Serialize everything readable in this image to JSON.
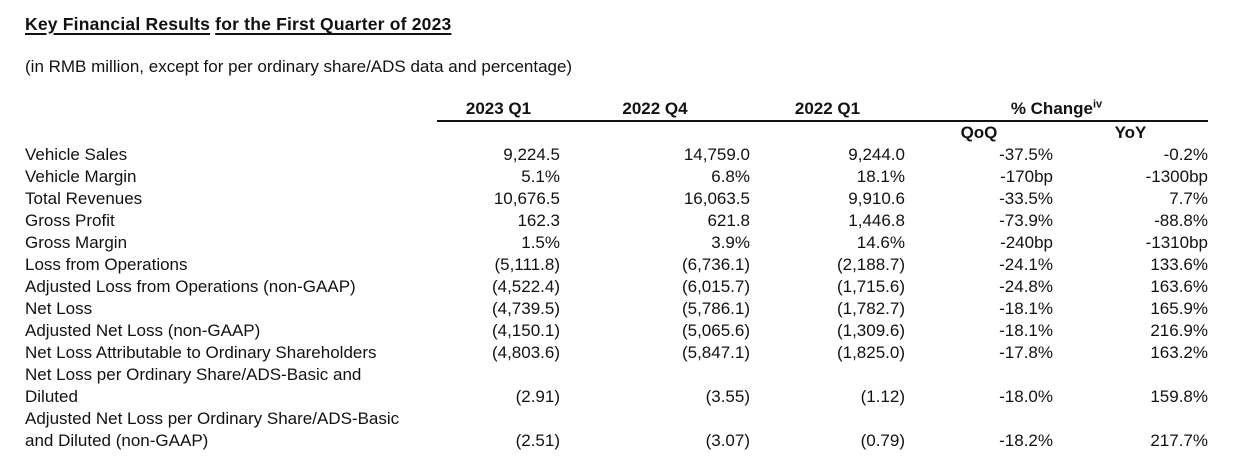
{
  "page": {
    "title_part1": "Key Financial Results",
    "title_part2": "for the First Quarter of 2023",
    "subtitle": "(in RMB million, except for per ordinary share/ADS data and percentage)"
  },
  "colors": {
    "text": "#121212",
    "background": "#ffffff",
    "rule": "#121212"
  },
  "table": {
    "period_headers": [
      "2023 Q1",
      "2022 Q4",
      "2022 Q1"
    ],
    "change_header": {
      "label": "% Change",
      "superscript": "iv"
    },
    "subheaders": {
      "qoq": "QoQ",
      "yoy": "YoY"
    },
    "rows": [
      {
        "label": "Vehicle Sales",
        "values": [
          "9,224.5",
          "14,759.0",
          "9,244.0",
          "-37.5%",
          "-0.2%"
        ]
      },
      {
        "label": "Vehicle Margin",
        "values": [
          "5.1%",
          "6.8%",
          "18.1%",
          "-170bp",
          "-1300bp"
        ]
      },
      {
        "label": "Total Revenues",
        "values": [
          "10,676.5",
          "16,063.5",
          "9,910.6",
          "-33.5%",
          "7.7%"
        ]
      },
      {
        "label": "Gross Profit",
        "values": [
          "162.3",
          "621.8",
          "1,446.8",
          "-73.9%",
          "-88.8%"
        ]
      },
      {
        "label": "Gross Margin",
        "values": [
          "1.5%",
          "3.9%",
          "14.6%",
          "-240bp",
          "-1310bp"
        ]
      },
      {
        "label": "Loss from Operations",
        "values": [
          "(5,111.8)",
          "(6,736.1)",
          "(2,188.7)",
          "-24.1%",
          "133.6%"
        ]
      },
      {
        "label": "Adjusted Loss from Operations (non-GAAP)",
        "values": [
          "(4,522.4)",
          "(6,015.7)",
          "(1,715.6)",
          "-24.8%",
          "163.6%"
        ]
      },
      {
        "label": "Net Loss",
        "values": [
          "(4,739.5)",
          "(5,786.1)",
          "(1,782.7)",
          "-18.1%",
          "165.9%"
        ]
      },
      {
        "label": "Adjusted Net Loss (non-GAAP)",
        "values": [
          "(4,150.1)",
          "(5,065.6)",
          "(1,309.6)",
          "-18.1%",
          "216.9%"
        ]
      },
      {
        "label": "Net Loss Attributable to Ordinary Shareholders",
        "values": [
          "(4,803.6)",
          "(5,847.1)",
          "(1,825.0)",
          "-17.8%",
          "163.2%"
        ]
      },
      {
        "label": "Net Loss per Ordinary Share/ADS-Basic and\nDiluted",
        "values": [
          "(2.91)",
          "(3.55)",
          "(1.12)",
          "-18.0%",
          "159.8%"
        ]
      },
      {
        "label": "Adjusted Net Loss per Ordinary Share/ADS-Basic\nand Diluted (non-GAAP)",
        "values": [
          "(2.51)",
          "(3.07)",
          "(0.79)",
          "-18.2%",
          "217.7%"
        ]
      }
    ]
  }
}
